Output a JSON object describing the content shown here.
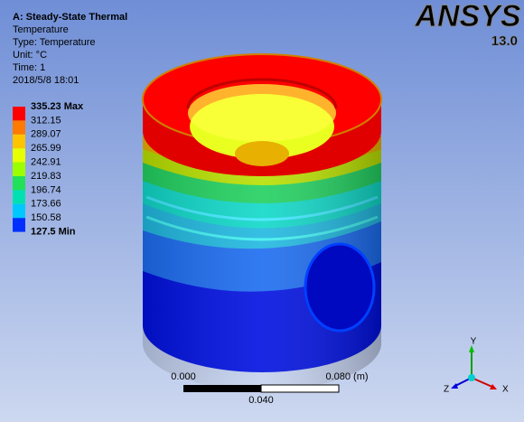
{
  "header": {
    "title": "A: Steady-State Thermal",
    "lines": [
      "Temperature",
      "Type: Temperature",
      "Unit: °C",
      "Time: 1",
      "2018/5/8 18:01"
    ]
  },
  "legend": {
    "labels": [
      "335.23 Max",
      "312.15",
      "289.07",
      "265.99",
      "242.91",
      "219.83",
      "196.74",
      "173.66",
      "150.58",
      "127.5 Min"
    ],
    "colors": [
      "#ff0000",
      "#ff7a00",
      "#ffc400",
      "#e8ff00",
      "#9cff00",
      "#22e05a",
      "#00e0b0",
      "#00c8ff",
      "#0030ff"
    ]
  },
  "logo": {
    "name": "ANSYS",
    "version": "13.0"
  },
  "scale": {
    "left": "0.000",
    "right": "0.080 (m)",
    "middle": "0.040"
  },
  "triad": {
    "x": "X",
    "y": "Y",
    "z": "Z"
  }
}
